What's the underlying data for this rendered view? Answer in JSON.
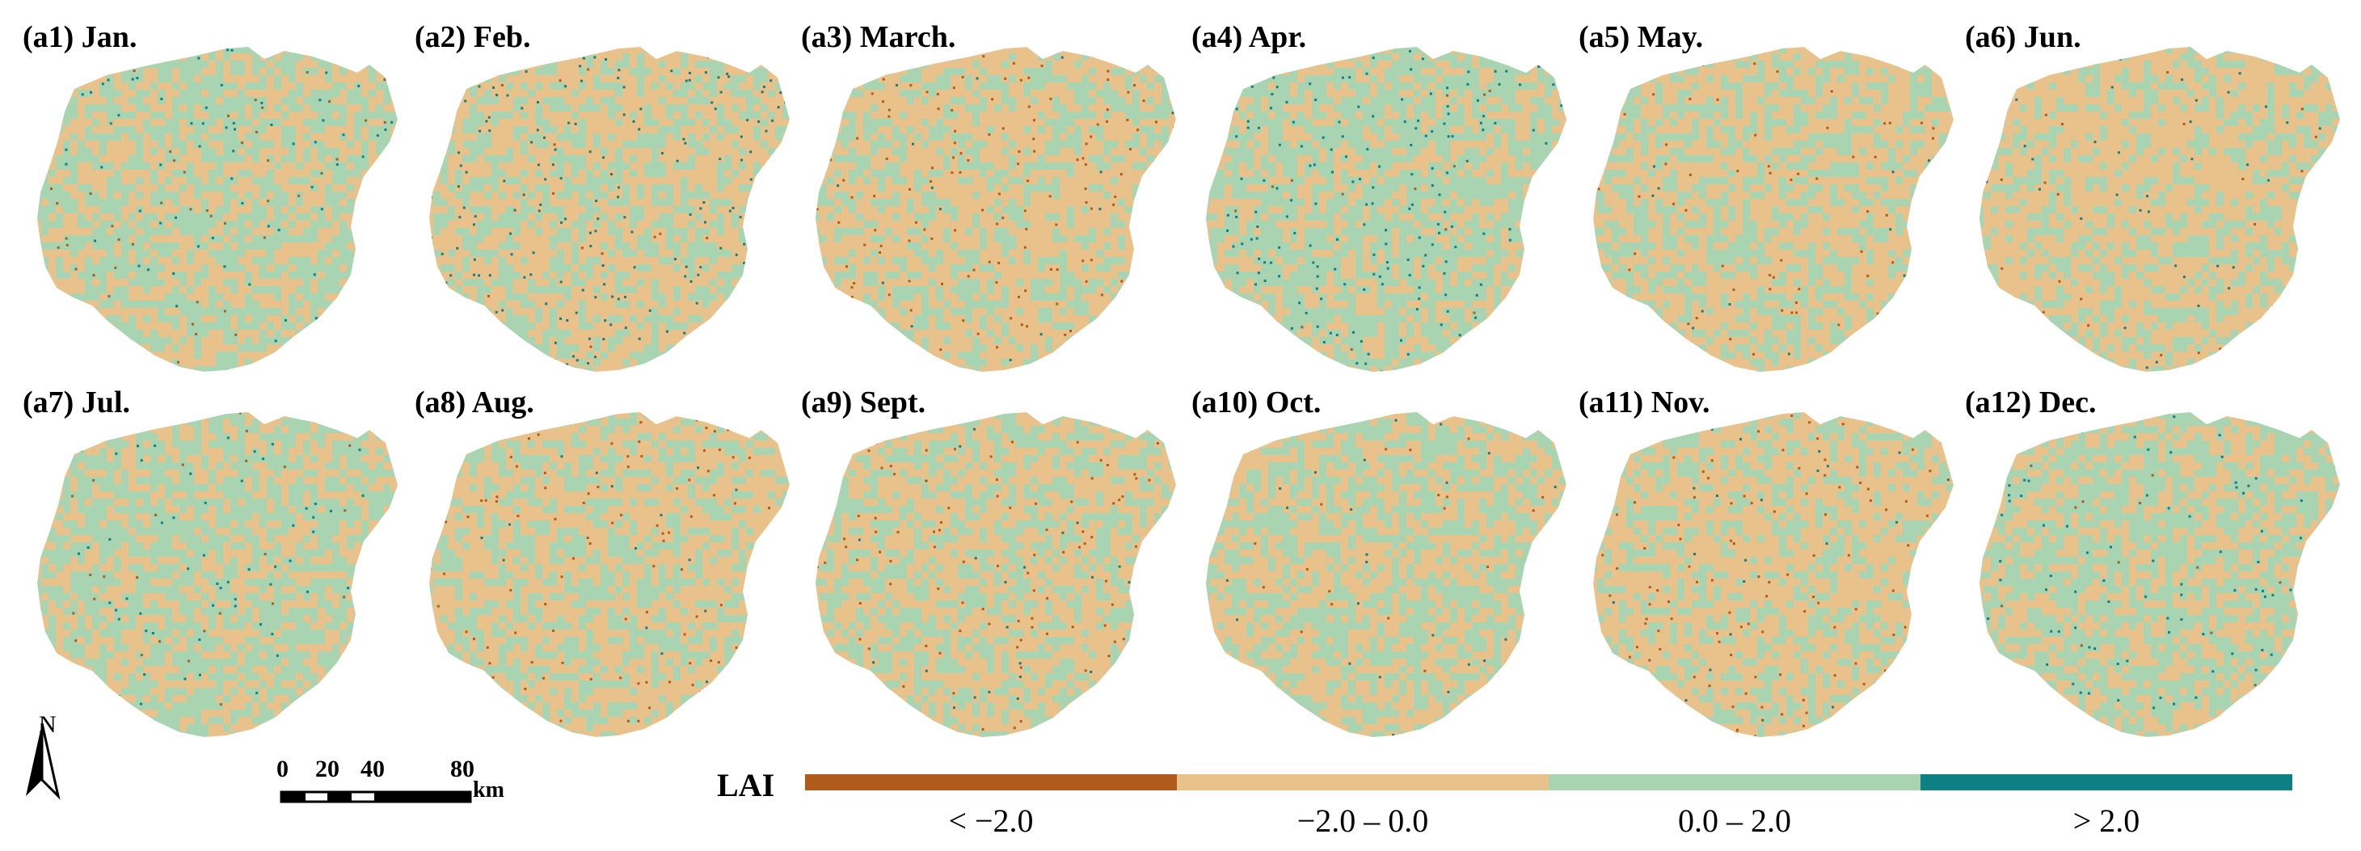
{
  "panels": [
    {
      "label": "(a1) Jan.",
      "mix": [
        0.02,
        0.44,
        0.5,
        0.04
      ]
    },
    {
      "label": "(a2) Feb.",
      "mix": [
        0.01,
        0.5,
        0.4,
        0.09
      ]
    },
    {
      "label": "(a3) March.",
      "mix": [
        0.07,
        0.55,
        0.37,
        0.01
      ]
    },
    {
      "label": "(a4) Apr.",
      "mix": [
        0.01,
        0.38,
        0.52,
        0.09
      ]
    },
    {
      "label": "(a5) May.",
      "mix": [
        0.03,
        0.55,
        0.41,
        0.01
      ]
    },
    {
      "label": "(a6) Jun.",
      "mix": [
        0.01,
        0.6,
        0.37,
        0.02
      ]
    },
    {
      "label": "(a7) Jul.",
      "mix": [
        0.01,
        0.42,
        0.54,
        0.03
      ]
    },
    {
      "label": "(a8) Aug.",
      "mix": [
        0.06,
        0.52,
        0.41,
        0.01
      ]
    },
    {
      "label": "(a9) Sept.",
      "mix": [
        0.05,
        0.52,
        0.42,
        0.01
      ]
    },
    {
      "label": "(a10) Oct.",
      "mix": [
        0.01,
        0.5,
        0.48,
        0.01
      ]
    },
    {
      "label": "(a11) Nov.",
      "mix": [
        0.06,
        0.57,
        0.36,
        0.01
      ]
    },
    {
      "label": "(a12) Dec.",
      "mix": [
        0.01,
        0.44,
        0.51,
        0.04
      ]
    }
  ],
  "north_arrow": {
    "label": "N"
  },
  "scale_bar": {
    "ticks": [
      "0",
      "20",
      "40",
      "80"
    ],
    "unit": "km"
  },
  "legend": {
    "title": "LAI",
    "classes": [
      {
        "label": "< −2.0",
        "color": "#b05a1c"
      },
      {
        "label": "−2.0 – 0.0",
        "color": "#e8c28a"
      },
      {
        "label": "0.0 – 2.0",
        "color": "#a8d4b2"
      },
      {
        "label": "> 2.0",
        "color": "#0f7f86"
      }
    ]
  }
}
